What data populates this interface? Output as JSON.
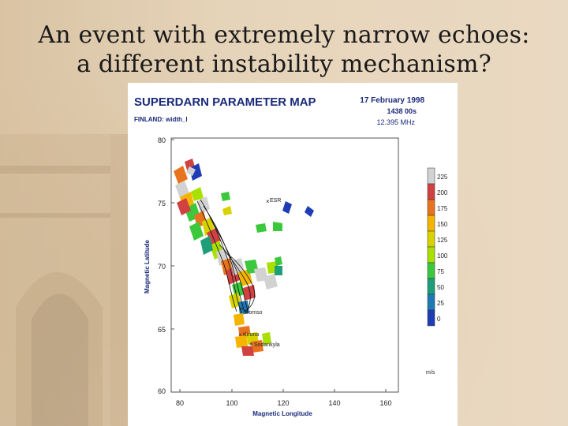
{
  "slide": {
    "title_line1": "An event with extremely narrow echoes:",
    "title_line2": "a different instability mechanism?"
  },
  "map": {
    "title": "SUPERDARN PARAMETER MAP",
    "date": "17 February 1998",
    "time": "1438 00s",
    "frequency": "12.395 MHz",
    "radar_param": "FINLAND: width_l",
    "ylabel": "Magnetic Latitude",
    "xlabel": "Magnetic Longitude",
    "yticks": [
      "80",
      "75",
      "70",
      "65",
      "60"
    ],
    "xticks": [
      "80",
      "100",
      "120",
      "140",
      "160"
    ],
    "stations": [
      "ESR",
      "Tromso",
      "Kiruna",
      "Sodankyla"
    ],
    "colorbar": {
      "labels": [
        "225",
        "200",
        "175",
        "150",
        "125",
        "100",
        "75",
        "50",
        "25",
        "0"
      ],
      "unit": "m/s",
      "colors": [
        "#d2d2d2",
        "#d24141",
        "#e8731e",
        "#f5b400",
        "#d7d200",
        "#aae000",
        "#3cc83c",
        "#1e9e78",
        "#1e78b4",
        "#1e3cb4"
      ]
    }
  }
}
